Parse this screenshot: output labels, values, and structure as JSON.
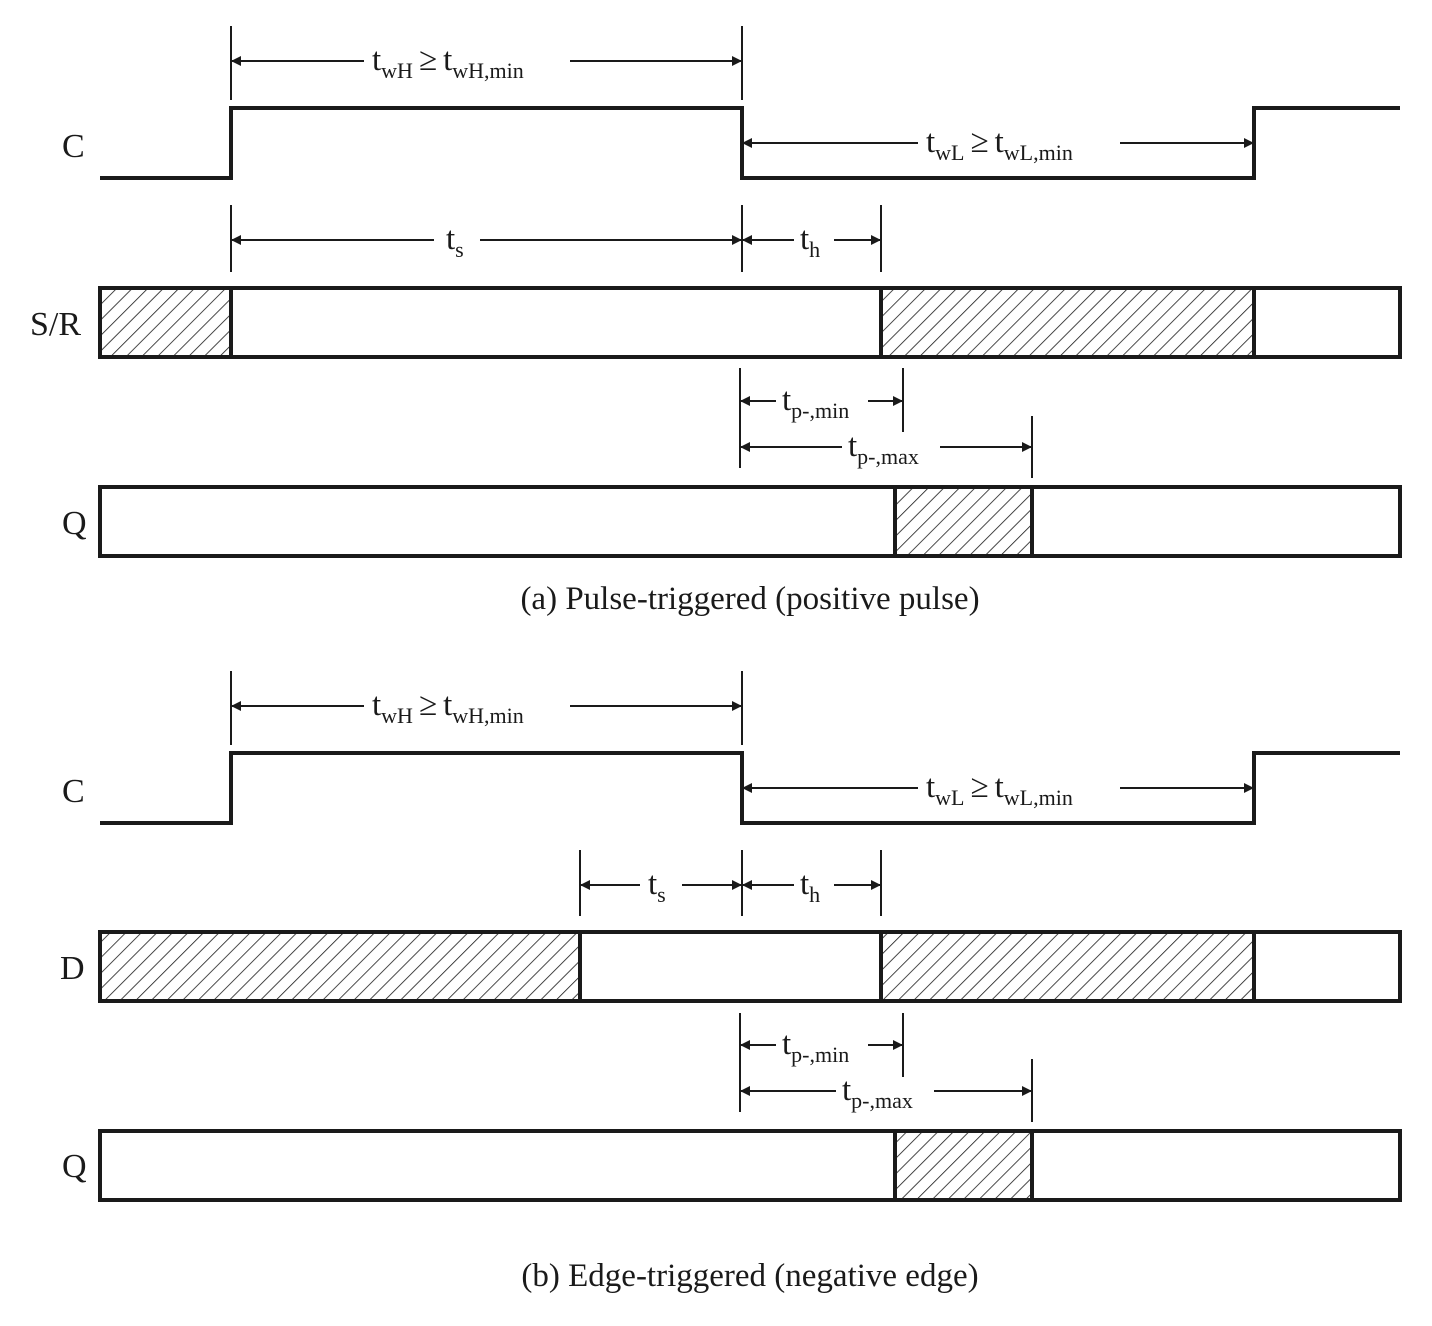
{
  "panel_a": {
    "clock_label": "C",
    "input_label": "S/R",
    "output_label": "Q",
    "twh": {
      "t": "t",
      "sub1": "wH",
      "rel": "≥",
      "t2": "t",
      "sub2": "wH,min"
    },
    "twl": {
      "t": "t",
      "sub1": "wL",
      "rel": "≥",
      "t2": "t",
      "sub2": "wL,min"
    },
    "ts": {
      "t": "t",
      "sub": "s"
    },
    "th": {
      "t": "t",
      "sub": "h"
    },
    "tpmin": {
      "t": "t",
      "sub": "p-,min"
    },
    "tpmax": {
      "t": "t",
      "sub": "p-,max"
    },
    "caption": "(a) Pulse-triggered (positive pulse)"
  },
  "panel_b": {
    "clock_label": "C",
    "input_label": "D",
    "output_label": "Q",
    "twh": {
      "t": "t",
      "sub1": "wH",
      "rel": "≥",
      "t2": "t",
      "sub2": "wH,min"
    },
    "twl": {
      "t": "t",
      "sub1": "wL",
      "rel": "≥",
      "t2": "t",
      "sub2": "wL,min"
    },
    "ts": {
      "t": "t",
      "sub": "s"
    },
    "th": {
      "t": "t",
      "sub": "h"
    },
    "tpmin": {
      "t": "t",
      "sub": "p-,min"
    },
    "tpmax": {
      "t": "t",
      "sub": "p-,max"
    },
    "caption": "(b) Edge-triggered (negative edge)"
  }
}
